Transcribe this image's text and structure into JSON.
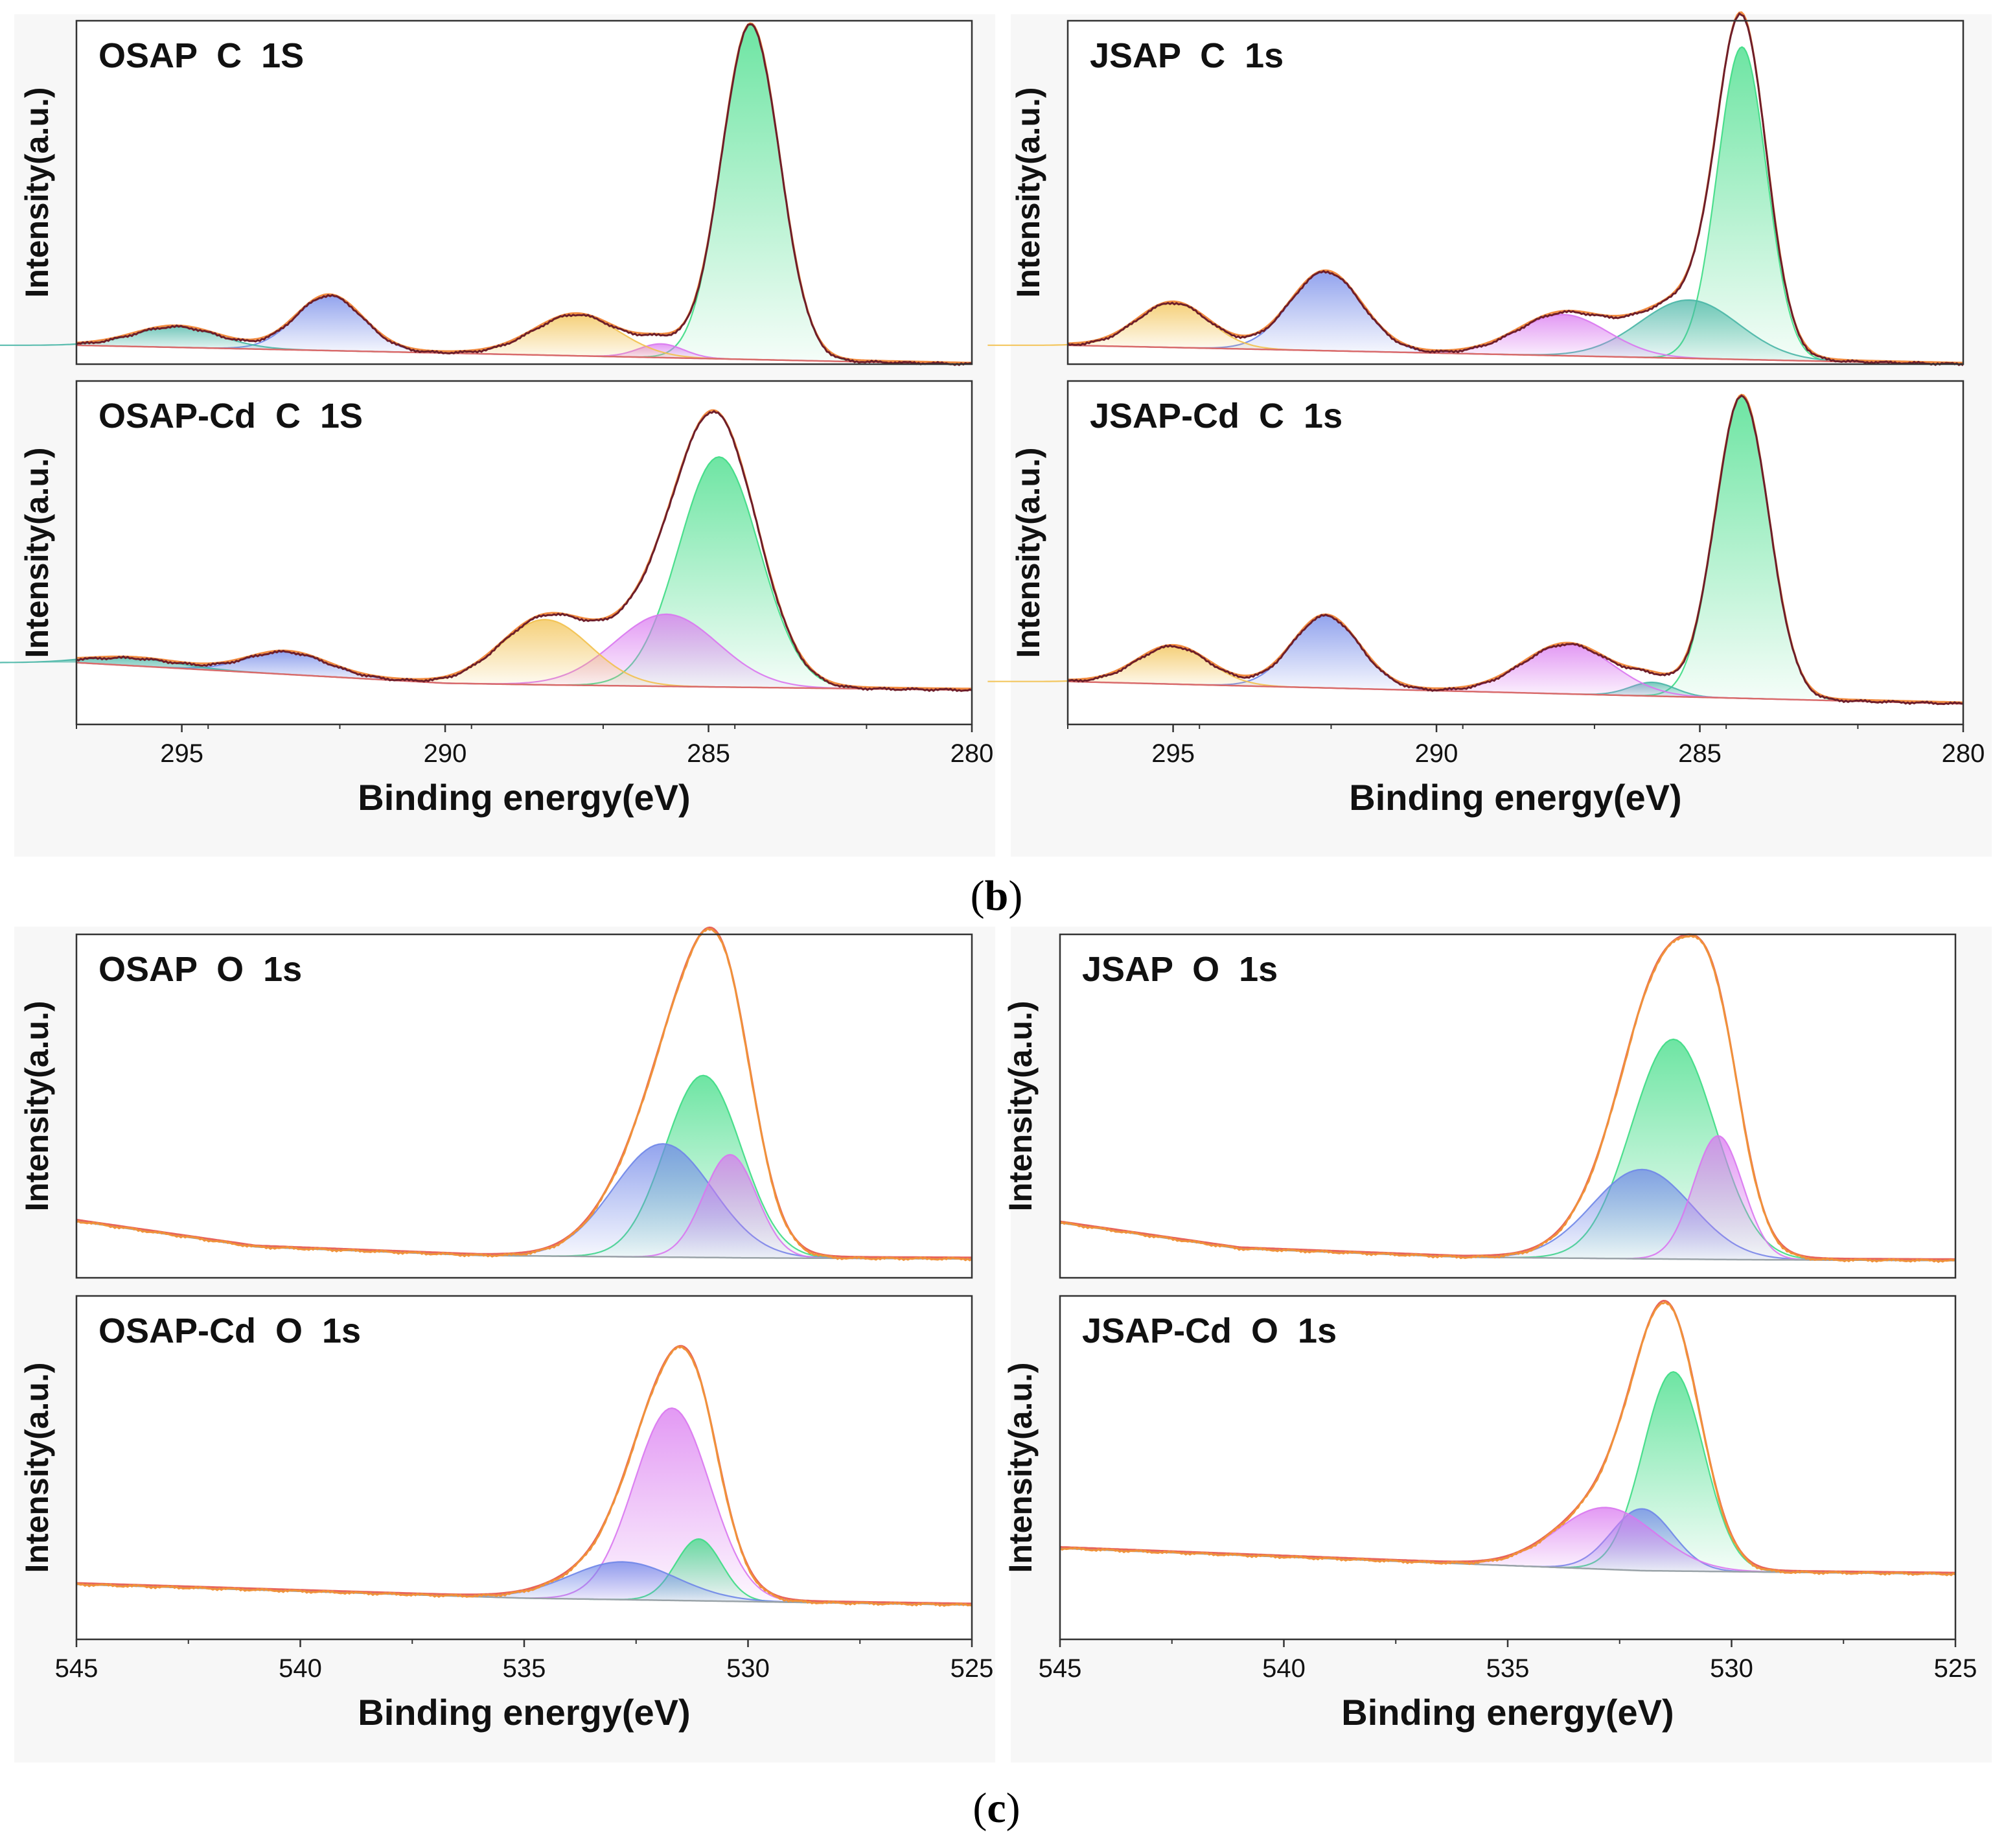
{
  "chart_data": [
    {
      "type": "line",
      "id": "osap_c",
      "title": "OSAP  C  1S",
      "ylabel": "Intensity(a.u.)",
      "xlabel": "",
      "xlim": [
        297,
        280
      ],
      "ylim": [
        0,
        1
      ],
      "show_xticks": false,
      "xticks": [
        295,
        290,
        285,
        280
      ],
      "baseline": [
        [
          297,
          0.055
        ],
        [
          280,
          0.0
        ]
      ],
      "components": [
        {
          "center": 284.2,
          "height": 0.975,
          "fwhm": 1.3,
          "color": "#3ddc84"
        },
        {
          "center": 285.9,
          "height": 0.04,
          "fwhm": 1.0,
          "color": "#d977f0"
        },
        {
          "center": 287.5,
          "height": 0.12,
          "fwhm": 1.9,
          "color": "#f2c14e"
        },
        {
          "center": 292.2,
          "height": 0.16,
          "fwhm": 1.5,
          "color": "#6f86e8"
        },
        {
          "center": 295.1,
          "height": 0.06,
          "fwhm": 1.9,
          "color": "#49b6a6"
        }
      ],
      "line_colors": {
        "envelope": "#6e1e2a",
        "baseline": "#d96b6b",
        "fit": "#f28c40"
      }
    },
    {
      "type": "line",
      "id": "jsap_c",
      "title": "JSAP  C  1s",
      "ylabel": "Intensity(a.u.)",
      "xlabel": "",
      "xlim": [
        297,
        280
      ],
      "ylim": [
        0,
        1
      ],
      "show_xticks": false,
      "xticks": [
        295,
        290,
        285,
        280
      ],
      "baseline": [
        [
          297,
          0.055
        ],
        [
          280,
          0.0
        ]
      ],
      "components": [
        {
          "center": 284.2,
          "height": 0.91,
          "fwhm": 1.1,
          "color": "#3ddc84"
        },
        {
          "center": 285.2,
          "height": 0.17,
          "fwhm": 2.2,
          "color": "#49b6a6"
        },
        {
          "center": 287.6,
          "height": 0.12,
          "fwhm": 2.0,
          "color": "#d977f0"
        },
        {
          "center": 292.1,
          "height": 0.23,
          "fwhm": 1.6,
          "color": "#6f86e8"
        },
        {
          "center": 295.0,
          "height": 0.13,
          "fwhm": 1.6,
          "color": "#f2c14e"
        }
      ],
      "line_colors": {
        "envelope": "#6e1e2a",
        "baseline": "#d96b6b",
        "fit": "#f28c40"
      }
    },
    {
      "type": "line",
      "id": "osap_cd_c",
      "title": "OSAP-Cd  C  1S",
      "ylabel": "Intensity(a.u.)",
      "xlabel": "Binding energy(eV)",
      "xlim": [
        297,
        280
      ],
      "ylim": [
        0,
        1
      ],
      "show_xticks": true,
      "xticks": [
        295,
        290,
        285,
        280
      ],
      "baseline": [
        [
          297,
          0.18
        ],
        [
          290,
          0.12
        ],
        [
          288,
          0.115
        ],
        [
          280,
          0.1
        ]
      ],
      "components": [
        {
          "center": 284.8,
          "height": 0.67,
          "fwhm": 1.8,
          "color": "#3ddc84"
        },
        {
          "center": 285.8,
          "height": 0.21,
          "fwhm": 2.3,
          "color": "#d977f0"
        },
        {
          "center": 288.1,
          "height": 0.19,
          "fwhm": 2.0,
          "color": "#f2c14e"
        },
        {
          "center": 293.0,
          "height": 0.065,
          "fwhm": 1.8,
          "color": "#6f86e8"
        },
        {
          "center": 295.9,
          "height": 0.022,
          "fwhm": 2.0,
          "color": "#49b6a6"
        }
      ],
      "line_colors": {
        "envelope": "#6e1e2a",
        "baseline": "#d96b6b",
        "fit": "#f28c40"
      }
    },
    {
      "type": "line",
      "id": "jsap_cd_c",
      "title": "JSAP-Cd  C  1s",
      "ylabel": "Intensity(a.u.)",
      "xlabel": "Binding energy(eV)",
      "xlim": [
        297,
        280
      ],
      "ylim": [
        0,
        1
      ],
      "show_xticks": true,
      "xticks": [
        295,
        290,
        285,
        280
      ],
      "baseline": [
        [
          297,
          0.125
        ],
        [
          280,
          0.06
        ]
      ],
      "components": [
        {
          "center": 284.2,
          "height": 0.88,
          "fwhm": 1.2,
          "color": "#3ddc84"
        },
        {
          "center": 285.9,
          "height": 0.04,
          "fwhm": 1.0,
          "color": "#49b6a6"
        },
        {
          "center": 287.5,
          "height": 0.145,
          "fwhm": 2.0,
          "color": "#d977f0"
        },
        {
          "center": 292.1,
          "height": 0.21,
          "fwhm": 1.5,
          "color": "#6f86e8"
        },
        {
          "center": 295.0,
          "height": 0.11,
          "fwhm": 1.6,
          "color": "#f2c14e"
        }
      ],
      "line_colors": {
        "envelope": "#6e1e2a",
        "baseline": "#d96b6b",
        "fit": "#f28c40"
      }
    },
    {
      "type": "line",
      "id": "osap_o",
      "title": "OSAP  O  1s",
      "ylabel": "Intensity(a.u.)",
      "xlabel": "",
      "xlim": [
        545,
        525
      ],
      "ylim": [
        0,
        1
      ],
      "show_xticks": false,
      "xticks": [
        545,
        540,
        535,
        530,
        525
      ],
      "baseline": [
        [
          545,
          0.165
        ],
        [
          541,
          0.09
        ],
        [
          536,
          0.065
        ],
        [
          530,
          0.058
        ],
        [
          525,
          0.055
        ]
      ],
      "components": [
        {
          "center": 531.0,
          "height": 0.53,
          "fwhm": 2.0,
          "color": "#3ddc84"
        },
        {
          "center": 531.9,
          "height": 0.33,
          "fwhm": 2.6,
          "color": "#6f86e8"
        },
        {
          "center": 530.4,
          "height": 0.3,
          "fwhm": 1.4,
          "color": "#d977f0"
        }
      ],
      "line_colors": {
        "envelope": "#f0923a",
        "baseline": "#9aa3a8",
        "fit": "#e8645a"
      }
    },
    {
      "type": "line",
      "id": "jsap_o",
      "title": "JSAP  O  1s",
      "ylabel": "Intensity(a.u.)",
      "xlabel": "",
      "xlim": [
        545,
        525
      ],
      "ylim": [
        0,
        1
      ],
      "show_xticks": false,
      "xticks": [
        545,
        540,
        535,
        530,
        525
      ],
      "baseline": [
        [
          545,
          0.16
        ],
        [
          541,
          0.085
        ],
        [
          536,
          0.06
        ],
        [
          530,
          0.053
        ],
        [
          525,
          0.05
        ]
      ],
      "components": [
        {
          "center": 531.3,
          "height": 0.64,
          "fwhm": 2.2,
          "color": "#3ddc84"
        },
        {
          "center": 532.0,
          "height": 0.26,
          "fwhm": 2.6,
          "color": "#6f86e8"
        },
        {
          "center": 530.3,
          "height": 0.36,
          "fwhm": 1.3,
          "color": "#d977f0"
        }
      ],
      "line_colors": {
        "envelope": "#f0923a",
        "baseline": "#9aa3a8",
        "fit": "#e8645a"
      }
    },
    {
      "type": "line",
      "id": "osap_cd_o",
      "title": "OSAP-Cd  O  1s",
      "ylabel": "Intensity(a.u.)",
      "xlabel": "Binding energy(eV)",
      "xlim": [
        545,
        525
      ],
      "ylim": [
        0,
        1
      ],
      "show_xticks": true,
      "xticks": [
        545,
        540,
        535,
        530,
        525
      ],
      "baseline": [
        [
          545,
          0.16
        ],
        [
          535,
          0.12
        ],
        [
          525,
          0.1
        ]
      ],
      "components": [
        {
          "center": 531.7,
          "height": 0.56,
          "fwhm": 2.0,
          "color": "#d977f0"
        },
        {
          "center": 531.1,
          "height": 0.18,
          "fwhm": 1.2,
          "color": "#3ddc84"
        },
        {
          "center": 532.8,
          "height": 0.11,
          "fwhm": 2.8,
          "color": "#6f86e8"
        }
      ],
      "line_colors": {
        "envelope": "#f0923a",
        "baseline": "#9aa3a8",
        "fit": "#e8645a"
      }
    },
    {
      "type": "line",
      "id": "jsap_cd_o",
      "title": "JSAP-Cd  O  1s",
      "ylabel": "Intensity(a.u.)",
      "xlabel": "Binding energy(eV)",
      "xlim": [
        545,
        525
      ],
      "ylim": [
        0,
        1
      ],
      "show_xticks": true,
      "xticks": [
        545,
        540,
        535,
        530,
        525
      ],
      "baseline": [
        [
          545,
          0.265
        ],
        [
          532,
          0.2
        ],
        [
          525,
          0.19
        ]
      ],
      "components": [
        {
          "center": 531.3,
          "height": 0.58,
          "fwhm": 1.6,
          "color": "#3ddc84"
        },
        {
          "center": 532.0,
          "height": 0.18,
          "fwhm": 1.6,
          "color": "#6f86e8"
        },
        {
          "center": 532.8,
          "height": 0.18,
          "fwhm": 2.6,
          "color": "#d977f0"
        }
      ],
      "line_colors": {
        "envelope": "#f0923a",
        "baseline": "#9aa3a8",
        "fit": "#e8645a"
      }
    }
  ],
  "figure": {
    "label_b_open": "(",
    "label_b_letter": "b",
    "label_b_close": ")",
    "label_c_open": "(",
    "label_c_letter": "c",
    "label_c_close": ")"
  }
}
